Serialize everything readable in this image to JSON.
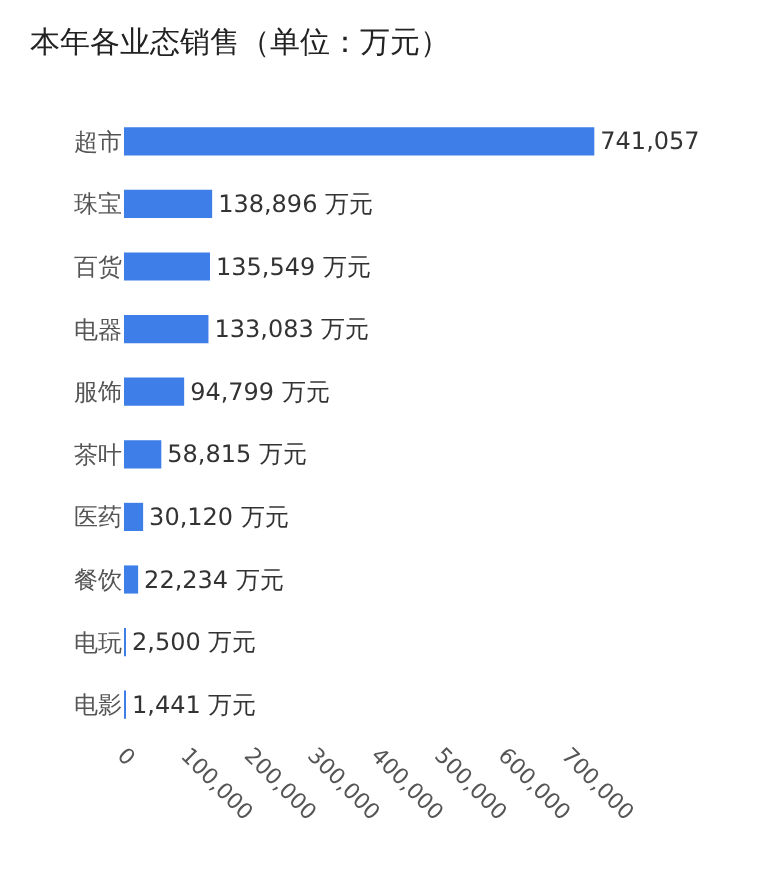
{
  "chart_data": {
    "type": "bar",
    "orientation": "horizontal",
    "title": "本年各业态销售（单位：万元）",
    "categories": [
      "超市",
      "珠宝",
      "百货",
      "电器",
      "服饰",
      "茶叶",
      "医药",
      "餐饮",
      "电玩",
      "电影"
    ],
    "values": [
      741057,
      138896,
      135549,
      133083,
      94799,
      58815,
      30120,
      22234,
      2500,
      1441
    ],
    "value_labels": [
      "741,057",
      "138,896 万元",
      "135,549 万元",
      "133,083 万元",
      "94,799 万元",
      "58,815 万元",
      "30,120 万元",
      "22,234 万元",
      "2,500 万元",
      "1,441 万元"
    ],
    "color": "#3d7ee8",
    "xlim": [
      0,
      750000
    ],
    "xticks": [
      {
        "value": 0,
        "label": "0"
      },
      {
        "value": 100000,
        "label": "100,000"
      },
      {
        "value": 200000,
        "label": "200,000"
      },
      {
        "value": 300000,
        "label": "300,000"
      },
      {
        "value": 400000,
        "label": "400,000"
      },
      {
        "value": 500000,
        "label": "500,000"
      },
      {
        "value": 600000,
        "label": "600,000"
      },
      {
        "value": 700000,
        "label": "700,000"
      }
    ],
    "tick_labels": [
      "x",
      "y"
    ]
  }
}
